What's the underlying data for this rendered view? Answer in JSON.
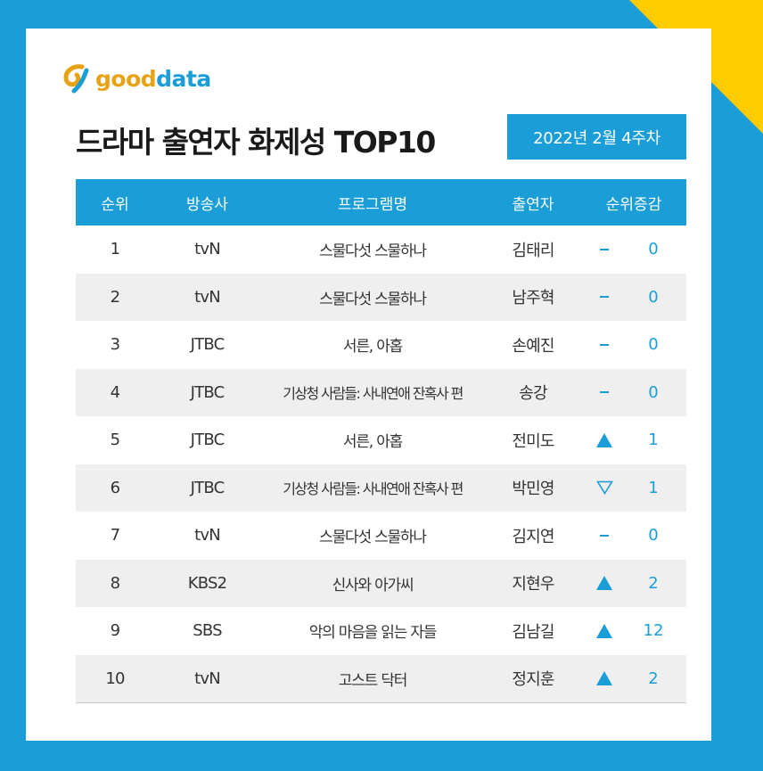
{
  "brand": {
    "logo_good": "good",
    "logo_data": "data",
    "logo_icon": "gooddata-swirl-icon"
  },
  "title": "드라마 출연자 화제성 TOP10",
  "week": "2022년 2월 4주차",
  "colors": {
    "accent": "#1b9ed8",
    "corner": "#ffcc00",
    "alt_row": "#efefef",
    "logo_orange": "#e8a215"
  },
  "table": {
    "headers": {
      "rank": "순위",
      "network": "방송사",
      "program": "프로그램명",
      "actor": "출연자",
      "change": "순위증감"
    },
    "rows": [
      {
        "rank": "1",
        "network": "tvN",
        "program": "스물다섯 스물하나",
        "actor": "김태리",
        "trend": "same",
        "change": "0"
      },
      {
        "rank": "2",
        "network": "tvN",
        "program": "스물다섯 스물하나",
        "actor": "남주혁",
        "trend": "same",
        "change": "0"
      },
      {
        "rank": "3",
        "network": "JTBC",
        "program": "서른, 아홉",
        "actor": "손예진",
        "trend": "same",
        "change": "0"
      },
      {
        "rank": "4",
        "network": "JTBC",
        "program": "기상청 사람들: 사내연애 잔혹사 편",
        "actor": "송강",
        "trend": "same",
        "change": "0"
      },
      {
        "rank": "5",
        "network": "JTBC",
        "program": "서른, 아홉",
        "actor": "전미도",
        "trend": "up",
        "change": "1"
      },
      {
        "rank": "6",
        "network": "JTBC",
        "program": "기상청 사람들: 사내연애 잔혹사 편",
        "actor": "박민영",
        "trend": "down",
        "change": "1"
      },
      {
        "rank": "7",
        "network": "tvN",
        "program": "스물다섯 스물하나",
        "actor": "김지연",
        "trend": "same",
        "change": "0"
      },
      {
        "rank": "8",
        "network": "KBS2",
        "program": "신사와 아가씨",
        "actor": "지현우",
        "trend": "up",
        "change": "2"
      },
      {
        "rank": "9",
        "network": "SBS",
        "program": "악의 마음을 읽는 자들",
        "actor": "김남길",
        "trend": "up",
        "change": "12"
      },
      {
        "rank": "10",
        "network": "tvN",
        "program": "고스트 닥터",
        "actor": "정지훈",
        "trend": "up",
        "change": "2"
      }
    ]
  }
}
